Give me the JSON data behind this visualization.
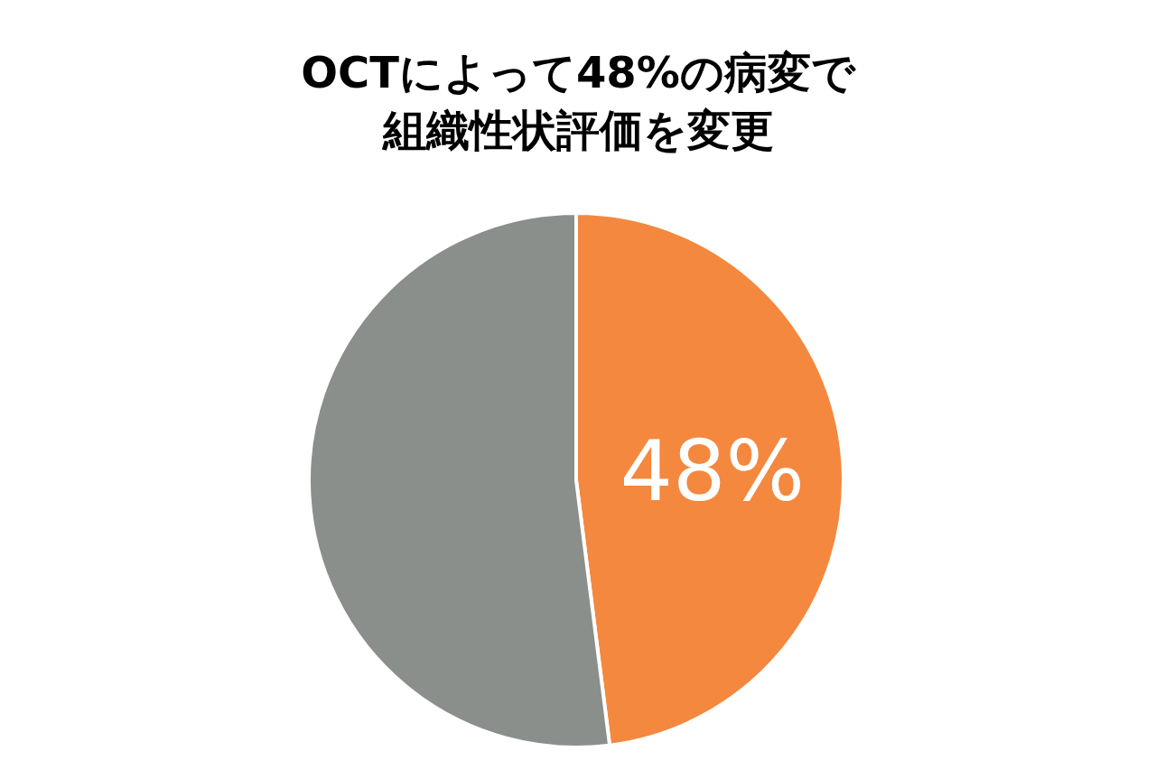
{
  "chart_data": {
    "type": "pie",
    "title": "OCTによって48%の病変で組織性状評価を変更",
    "categories": [
      null,
      null
    ],
    "values": [
      48,
      52
    ],
    "colors": [
      "#f4883f",
      "#8a8f8c"
    ],
    "value_labels": [
      "48%",
      null
    ]
  }
}
